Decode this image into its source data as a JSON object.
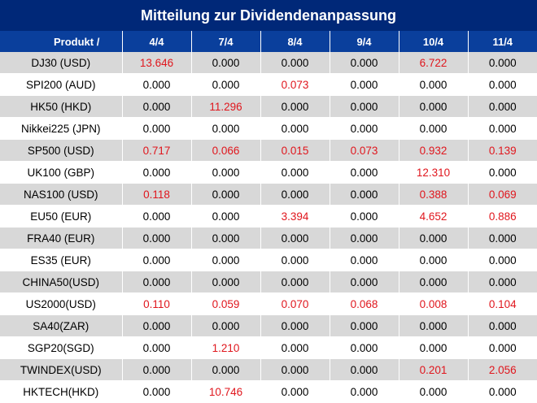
{
  "title": "Mitteilung zur Dividendenanpassung",
  "header": {
    "product_label": "Produkt /",
    "dates": [
      "4/4",
      "7/4",
      "8/4",
      "9/4",
      "10/4",
      "11/4"
    ]
  },
  "colors": {
    "title_bg": "#002878",
    "header_bg": "#0a3f9c",
    "highlight": "#e0161d",
    "stripe": "#d8d8d8"
  },
  "rows": [
    {
      "product": "DJ30 (USD)",
      "values": [
        "13.646",
        "0.000",
        "0.000",
        "0.000",
        "6.722",
        "0.000"
      ]
    },
    {
      "product": "SPI200 (AUD)",
      "values": [
        "0.000",
        "0.000",
        "0.073",
        "0.000",
        "0.000",
        "0.000"
      ]
    },
    {
      "product": "HK50 (HKD)",
      "values": [
        "0.000",
        "11.296",
        "0.000",
        "0.000",
        "0.000",
        "0.000"
      ]
    },
    {
      "product": "Nikkei225 (JPN)",
      "values": [
        "0.000",
        "0.000",
        "0.000",
        "0.000",
        "0.000",
        "0.000"
      ]
    },
    {
      "product": "SP500 (USD)",
      "values": [
        "0.717",
        "0.066",
        "0.015",
        "0.073",
        "0.932",
        "0.139"
      ]
    },
    {
      "product": "UK100 (GBP)",
      "values": [
        "0.000",
        "0.000",
        "0.000",
        "0.000",
        "12.310",
        "0.000"
      ]
    },
    {
      "product": "NAS100 (USD)",
      "values": [
        "0.118",
        "0.000",
        "0.000",
        "0.000",
        "0.388",
        "0.069"
      ]
    },
    {
      "product": "EU50 (EUR)",
      "values": [
        "0.000",
        "0.000",
        "3.394",
        "0.000",
        "4.652",
        "0.886"
      ]
    },
    {
      "product": "FRA40 (EUR)",
      "values": [
        "0.000",
        "0.000",
        "0.000",
        "0.000",
        "0.000",
        "0.000"
      ]
    },
    {
      "product": "ES35 (EUR)",
      "values": [
        "0.000",
        "0.000",
        "0.000",
        "0.000",
        "0.000",
        "0.000"
      ]
    },
    {
      "product": "CHINA50(USD)",
      "values": [
        "0.000",
        "0.000",
        "0.000",
        "0.000",
        "0.000",
        "0.000"
      ]
    },
    {
      "product": "US2000(USD)",
      "values": [
        "0.110",
        "0.059",
        "0.070",
        "0.068",
        "0.008",
        "0.104"
      ]
    },
    {
      "product": "SA40(ZAR)",
      "values": [
        "0.000",
        "0.000",
        "0.000",
        "0.000",
        "0.000",
        "0.000"
      ]
    },
    {
      "product": "SGP20(SGD)",
      "values": [
        "0.000",
        "1.210",
        "0.000",
        "0.000",
        "0.000",
        "0.000"
      ]
    },
    {
      "product": "TWINDEX(USD)",
      "values": [
        "0.000",
        "0.000",
        "0.000",
        "0.000",
        "0.201",
        "2.056"
      ]
    },
    {
      "product": "HKTECH(HKD)",
      "values": [
        "0.000",
        "10.746",
        "0.000",
        "0.000",
        "0.000",
        "0.000"
      ]
    }
  ]
}
